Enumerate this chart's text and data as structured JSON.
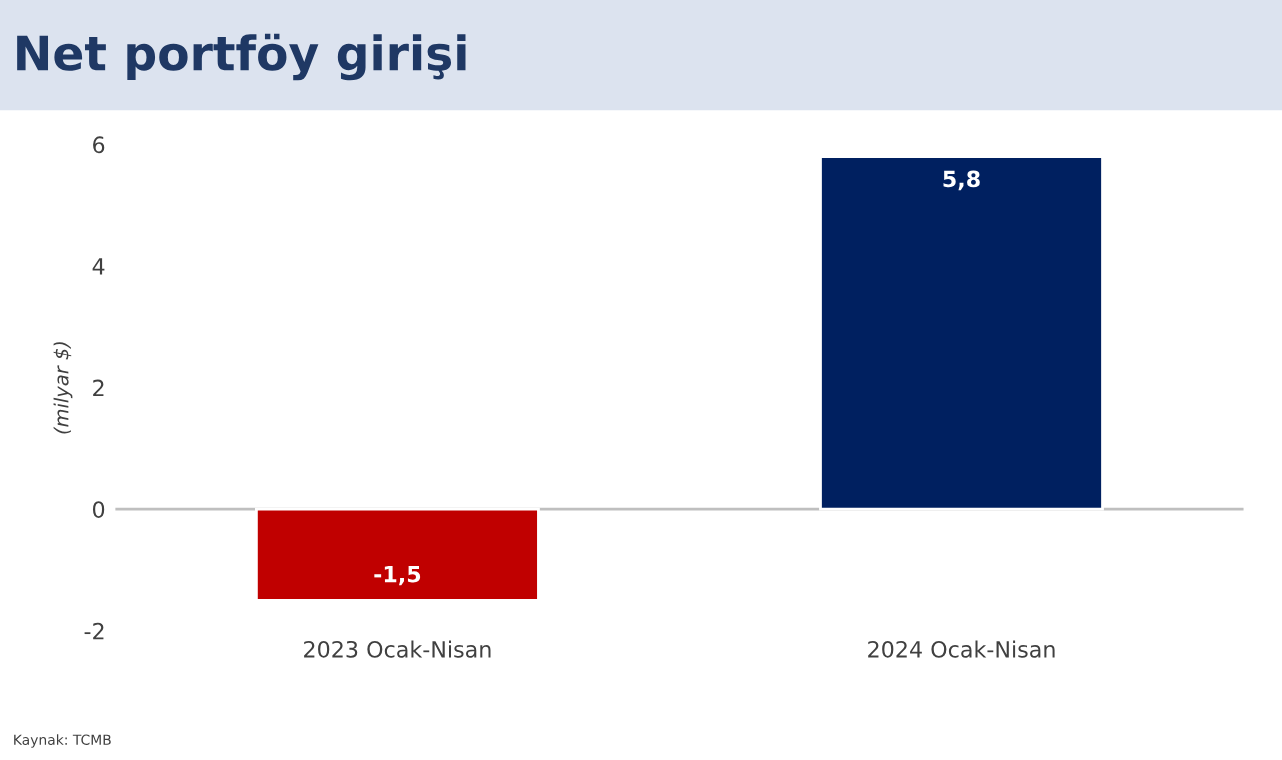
{
  "chart_data": {
    "type": "bar",
    "title": "Net portföy girişi",
    "ylabel": "(milyar $)",
    "categories": [
      "2023 Ocak-Nisan",
      "2024 Ocak-Nisan"
    ],
    "values": [
      -1.5,
      5.8
    ],
    "colors": [
      "#c00000",
      "#002060"
    ],
    "value_labels": [
      "-1,5",
      "5,8"
    ],
    "ylim": [
      -2,
      6
    ],
    "yticks": [
      -2,
      0,
      2,
      4,
      6
    ],
    "ref_lines": [
      {
        "axis": "y",
        "value": 0,
        "color": "#bfbfbf"
      }
    ],
    "annotations": [
      "Kaynak: TCMB"
    ]
  }
}
